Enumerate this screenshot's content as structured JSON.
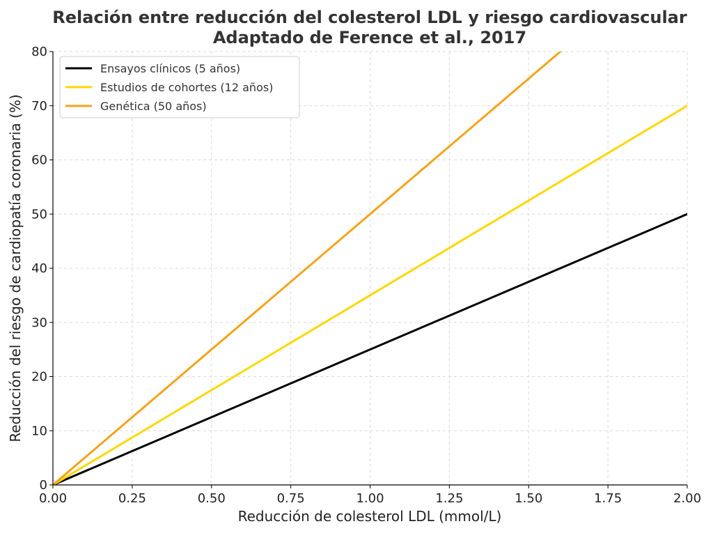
{
  "chart_data": {
    "type": "line",
    "title": "Relación entre reducción del colesterol LDL y riesgo cardiovascular",
    "subtitle": "Adaptado de Ference et al., 2017",
    "xlabel": "Reducción de colesterol LDL (mmol/L)",
    "ylabel": "Reducción del riesgo de cardiopatía coronaria (%)",
    "xlim": [
      0,
      2
    ],
    "ylim": [
      0,
      80
    ],
    "xticks": [
      "0.00",
      "0.25",
      "0.50",
      "0.75",
      "1.00",
      "1.25",
      "1.50",
      "1.75",
      "2.00"
    ],
    "yticks": [
      "0",
      "10",
      "20",
      "30",
      "40",
      "50",
      "60",
      "70",
      "80"
    ],
    "grid": true,
    "legend_position": "top-left",
    "series": [
      {
        "name": "Ensayos clínicos (5 años)",
        "color": "#000000",
        "x": [
          0,
          2
        ],
        "y": [
          0,
          50
        ]
      },
      {
        "name": "Estudios de cohortes (12 años)",
        "color": "#FFD700",
        "x": [
          0,
          2
        ],
        "y": [
          0,
          70
        ]
      },
      {
        "name": "Genética (50 años)",
        "color": "#F5A31A",
        "x": [
          0,
          2
        ],
        "y": [
          0,
          100
        ]
      }
    ]
  }
}
